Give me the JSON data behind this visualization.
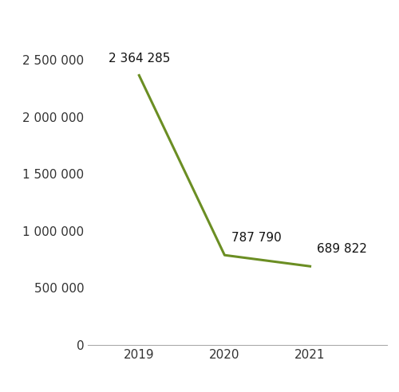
{
  "years": [
    2019,
    2020,
    2021
  ],
  "values": [
    2364285,
    787790,
    689822
  ],
  "labels": [
    "2 364 285",
    "787 790",
    "689 822"
  ],
  "line_color": "#6b8e23",
  "line_width": 2.2,
  "ylim": [
    0,
    2750000
  ],
  "yticks": [
    0,
    500000,
    1000000,
    1500000,
    2000000,
    2500000
  ],
  "ytick_labels": [
    "0",
    "500 000",
    "1 000 000",
    "1 500 000",
    "2 000 000",
    "2 500 000"
  ],
  "xtick_labels": [
    "2019",
    "2020",
    "2021"
  ],
  "background_color": "#ffffff",
  "font_size": 11,
  "tick_font_size": 11,
  "xlim": [
    2018.4,
    2021.9
  ]
}
